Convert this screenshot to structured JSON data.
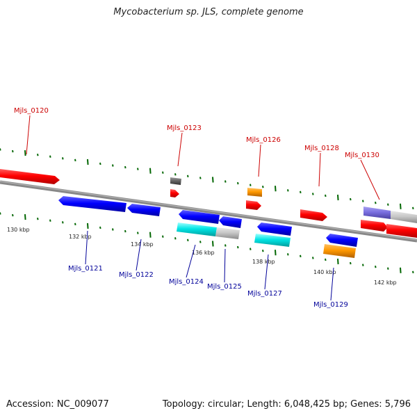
{
  "title": "Mycobacterium sp. JLS, complete genome",
  "footer": {
    "accession": "Accession: NC_009077",
    "stats": "Topology: circular; Length: 6,048,425 bp; Genes: 5,796"
  },
  "colors": {
    "forward_gene": "#ff0000",
    "reverse_gene": "#0000ff",
    "backbone": "#777777",
    "tick": "#006600",
    "label_forward": "#cc0000",
    "label_reverse": "#000099"
  },
  "scale_labels": [
    "130 kbp",
    "132 kbp",
    "134 kbp",
    "136 kbp",
    "138 kbp",
    "140 kbp",
    "142 kbp"
  ],
  "gene_labels": [
    {
      "text": "Mjls_0120",
      "strand": "+"
    },
    {
      "text": "Mjls_0121",
      "strand": "-"
    },
    {
      "text": "Mjls_0122",
      "strand": "-"
    },
    {
      "text": "Mjls_0123",
      "strand": "+"
    },
    {
      "text": "Mjls_0124",
      "strand": "-"
    },
    {
      "text": "Mjls_0125",
      "strand": "-"
    },
    {
      "text": "Mjls_0126",
      "strand": "+"
    },
    {
      "text": "Mjls_0127",
      "strand": "-"
    },
    {
      "text": "Mjls_0128",
      "strand": "+"
    },
    {
      "text": "Mjls_0129",
      "strand": "-"
    },
    {
      "text": "Mjls_0130",
      "strand": "+"
    }
  ]
}
